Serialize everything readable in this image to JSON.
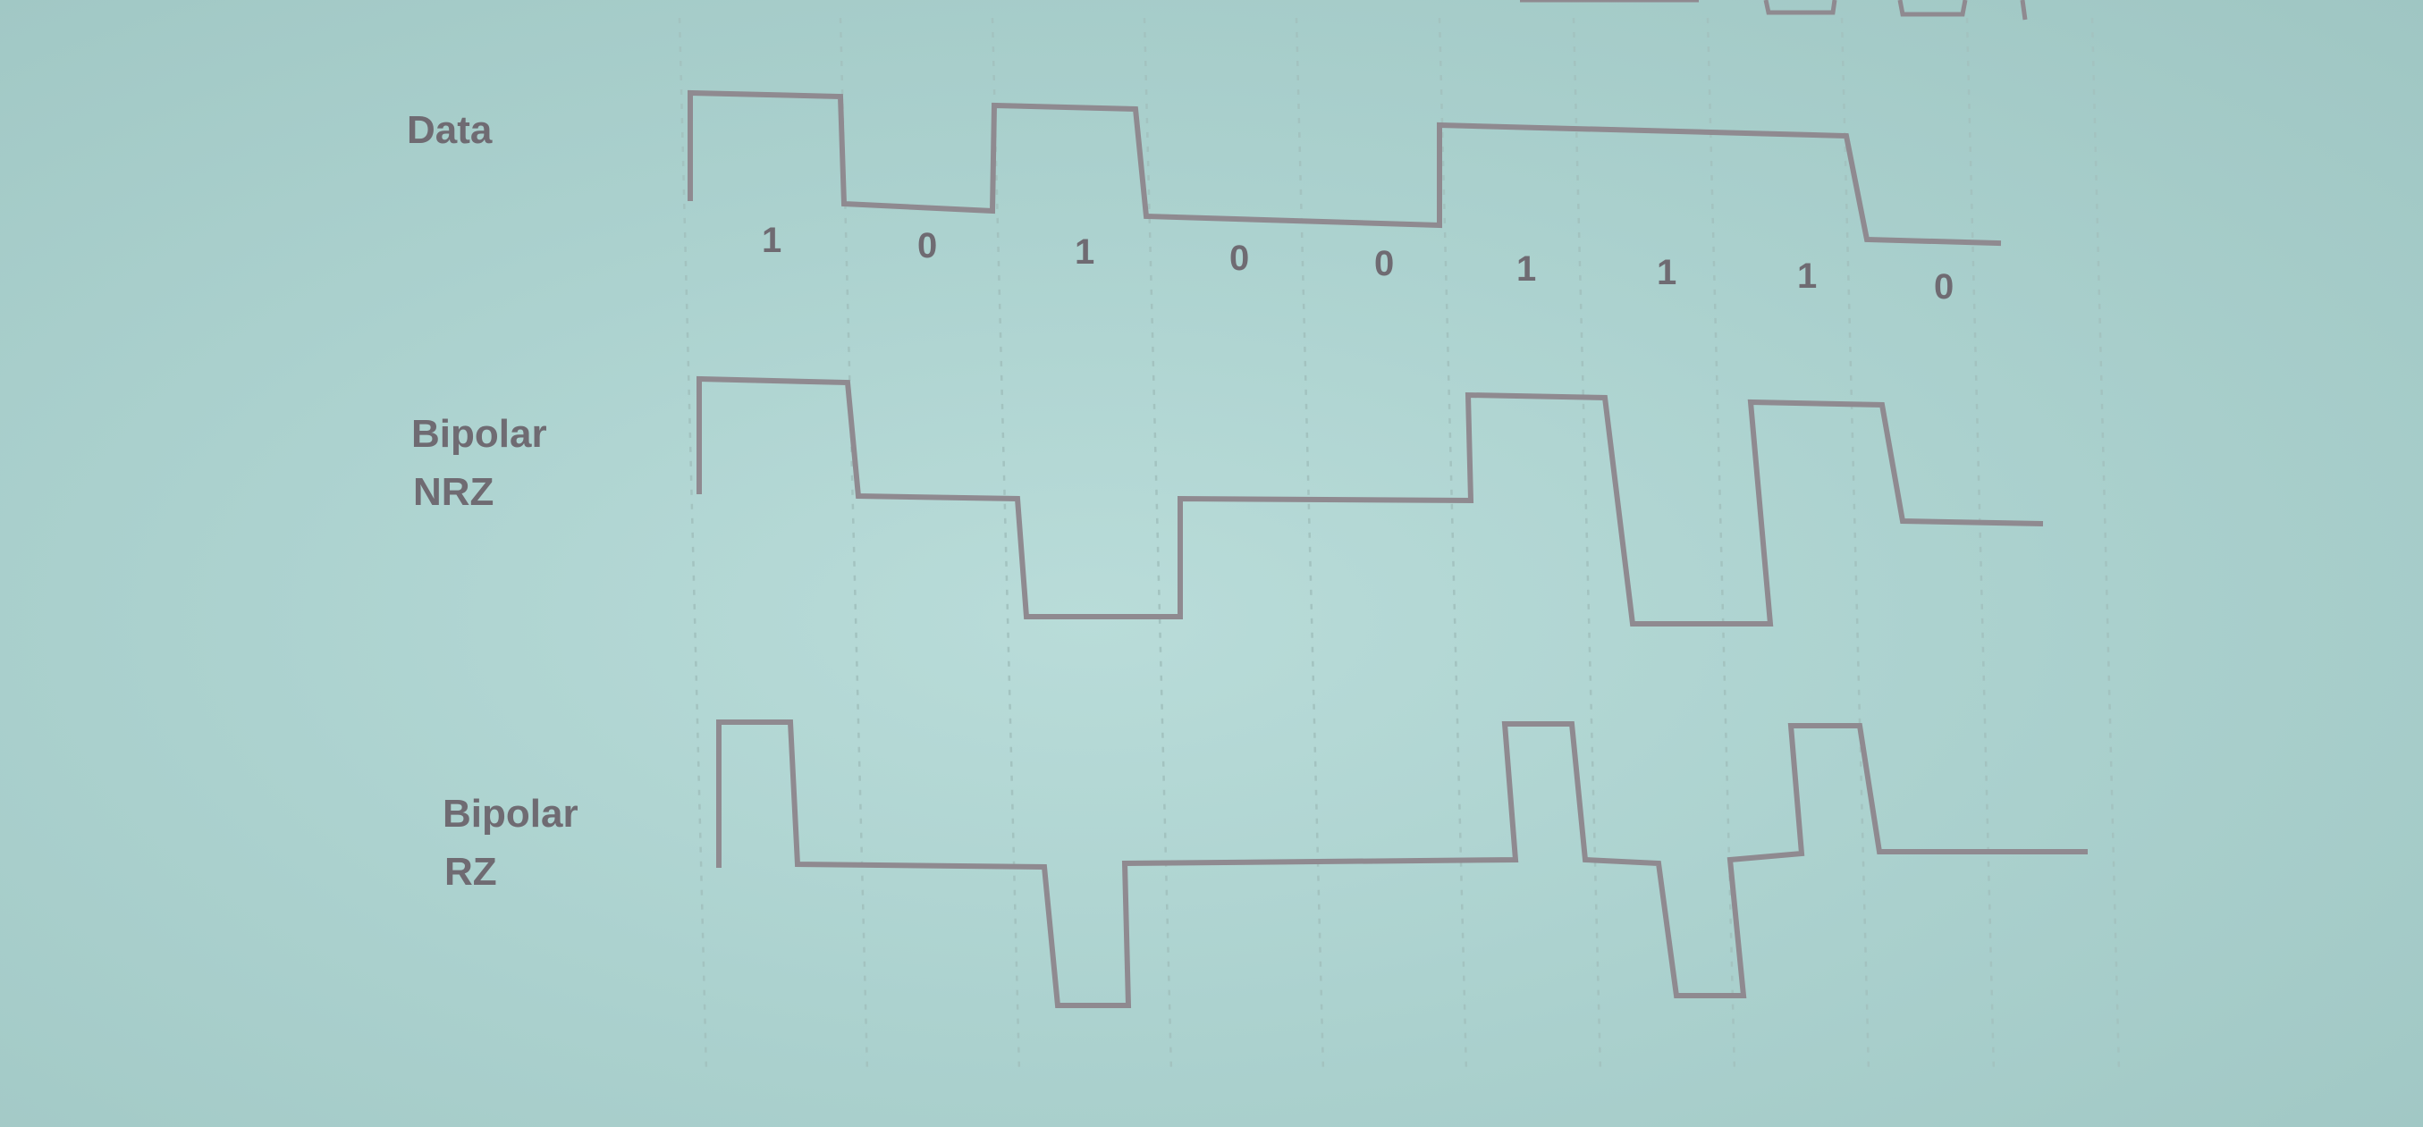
{
  "diagram": {
    "rows": [
      {
        "id": "data",
        "lines": [
          "Data"
        ]
      },
      {
        "id": "bipolar-nrz",
        "lines": [
          "Bipolar",
          "NRZ"
        ]
      },
      {
        "id": "bipolar-rz",
        "lines": [
          "Bipolar",
          "RZ"
        ]
      }
    ],
    "bits": [
      "1",
      "0",
      "1",
      "0",
      "0",
      "1",
      "1",
      "1",
      "0"
    ],
    "colors": {
      "background": "#afd4d1",
      "trace": "#8f8a90",
      "text": "#6f6b72",
      "grid": "#a3c3c0"
    }
  }
}
